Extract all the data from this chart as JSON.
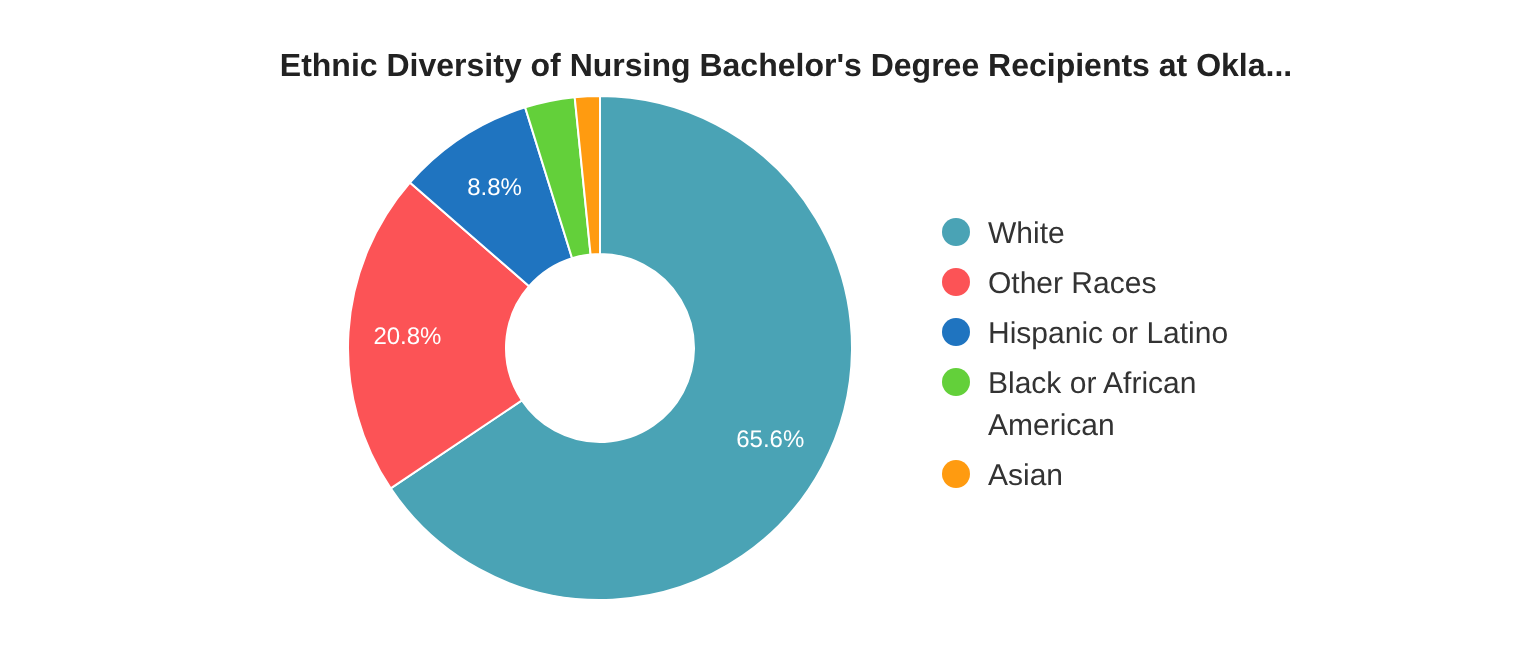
{
  "chart_data": {
    "type": "donut",
    "title": "Ethnic Diversity of Nursing Bachelor's Degree Recipients at Okla...",
    "categories": [
      "White",
      "Other Races",
      "Hispanic or Latino",
      "Black or African American",
      "Asian"
    ],
    "values": [
      65.6,
      20.8,
      8.8,
      3.2,
      1.6
    ],
    "colors": [
      "#4aa3b5",
      "#fc5356",
      "#1f74c0",
      "#63d03a",
      "#ff9b10"
    ],
    "value_labels": [
      "65.6%",
      "20.8%",
      "8.8%",
      null,
      null
    ],
    "legend": "right"
  }
}
